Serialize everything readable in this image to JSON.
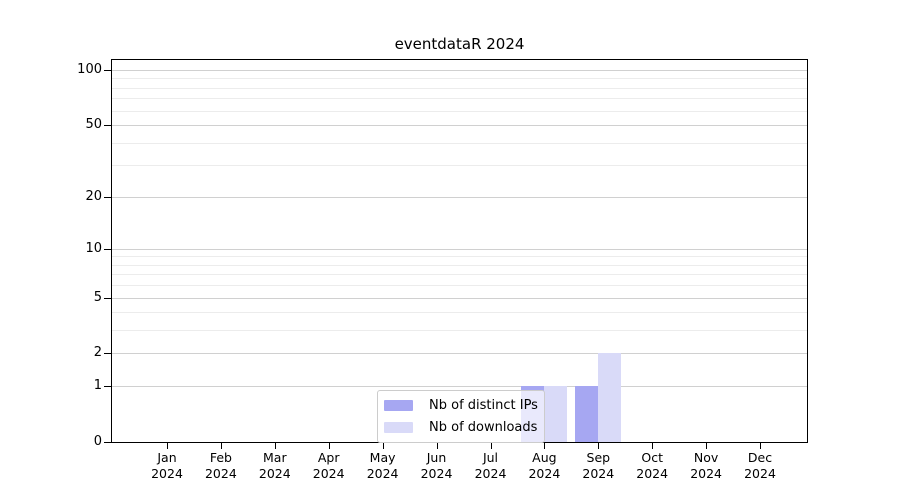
{
  "title": "eventdataR 2024",
  "legend": {
    "items": [
      {
        "label": "Nb of distinct IPs",
        "color": "#a6a7f2"
      },
      {
        "label": "Nb of downloads",
        "color": "#d9daf8"
      }
    ]
  },
  "chart_data": {
    "type": "bar",
    "title": "eventdataR 2024",
    "x_categories": [
      {
        "month": "Jan",
        "year": "2024"
      },
      {
        "month": "Feb",
        "year": "2024"
      },
      {
        "month": "Mar",
        "year": "2024"
      },
      {
        "month": "Apr",
        "year": "2024"
      },
      {
        "month": "May",
        "year": "2024"
      },
      {
        "month": "Jun",
        "year": "2024"
      },
      {
        "month": "Jul",
        "year": "2024"
      },
      {
        "month": "Aug",
        "year": "2024"
      },
      {
        "month": "Sep",
        "year": "2024"
      },
      {
        "month": "Oct",
        "year": "2024"
      },
      {
        "month": "Nov",
        "year": "2024"
      },
      {
        "month": "Dec",
        "year": "2024"
      }
    ],
    "series": [
      {
        "name": "Nb of distinct IPs",
        "color": "#a6a7f2",
        "values": [
          0,
          0,
          0,
          0,
          0,
          0,
          0,
          1,
          1,
          0,
          0,
          0
        ]
      },
      {
        "name": "Nb of downloads",
        "color": "#d9daf8",
        "values": [
          0,
          0,
          0,
          0,
          0,
          0,
          0,
          1,
          2,
          0,
          0,
          0
        ]
      }
    ],
    "yscale": "log1p",
    "ylim": [
      0,
      100
    ],
    "y_major_ticks": [
      0,
      1,
      2,
      5,
      10,
      20,
      50,
      100
    ],
    "y_minor_ticks": [
      3,
      4,
      6,
      7,
      8,
      9,
      30,
      40,
      60,
      70,
      80,
      90
    ],
    "grid": true,
    "legend_position": "lower center inside"
  }
}
